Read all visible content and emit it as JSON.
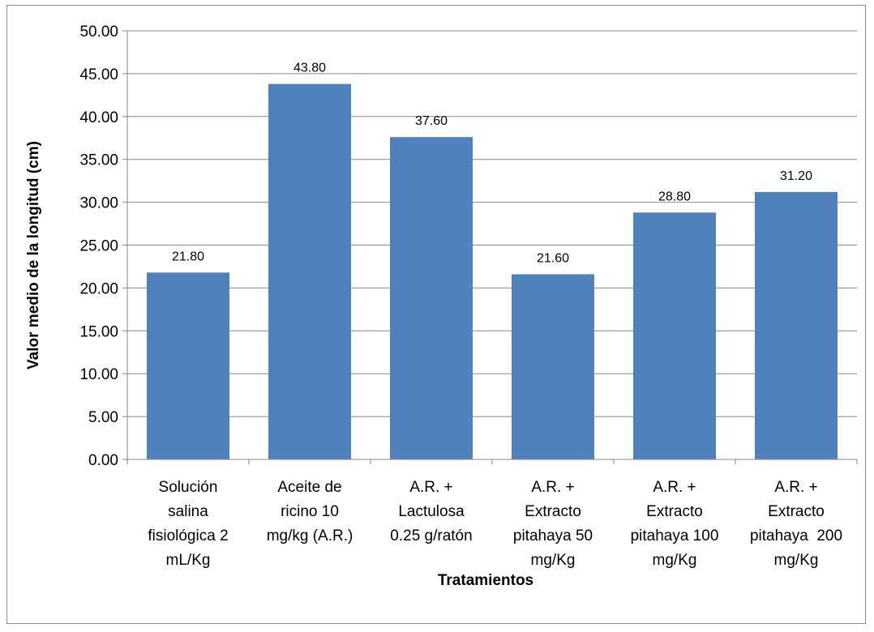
{
  "chart_data": {
    "type": "bar",
    "categories": [
      [
        "Solución",
        "salina",
        "fisiológica 2",
        "mL/Kg"
      ],
      [
        "Aceite de",
        "ricino 10",
        "mg/kg (A.R.)"
      ],
      [
        "A.R. +",
        "Lactulosa",
        "0.25 g/ratón"
      ],
      [
        "A.R. +",
        "Extracto",
        "pitahaya 50",
        "mg/Kg"
      ],
      [
        "A.R. +",
        "Extracto",
        "pitahaya 100",
        "mg/Kg"
      ],
      [
        "A.R. +",
        "Extracto",
        "pitahaya  200",
        "mg/Kg"
      ]
    ],
    "values": [
      21.8,
      43.8,
      37.6,
      21.6,
      28.8,
      31.2
    ],
    "data_labels": [
      "21.80",
      "43.80",
      "37.60",
      "21.60",
      "28.80",
      "31.20"
    ],
    "y_ticks": [
      "0.00",
      "5.00",
      "10.00",
      "15.00",
      "20.00",
      "25.00",
      "30.00",
      "35.00",
      "40.00",
      "45.00",
      "50.00"
    ],
    "ylim": [
      0,
      50
    ],
    "xlabel": "Tratamientos",
    "ylabel": "Valor medio de la longitud (cm)",
    "title": "",
    "grid": true,
    "legend": "none",
    "colors": {
      "bar": "#4f81bd",
      "grid": "#868686",
      "axis": "#868686"
    }
  }
}
